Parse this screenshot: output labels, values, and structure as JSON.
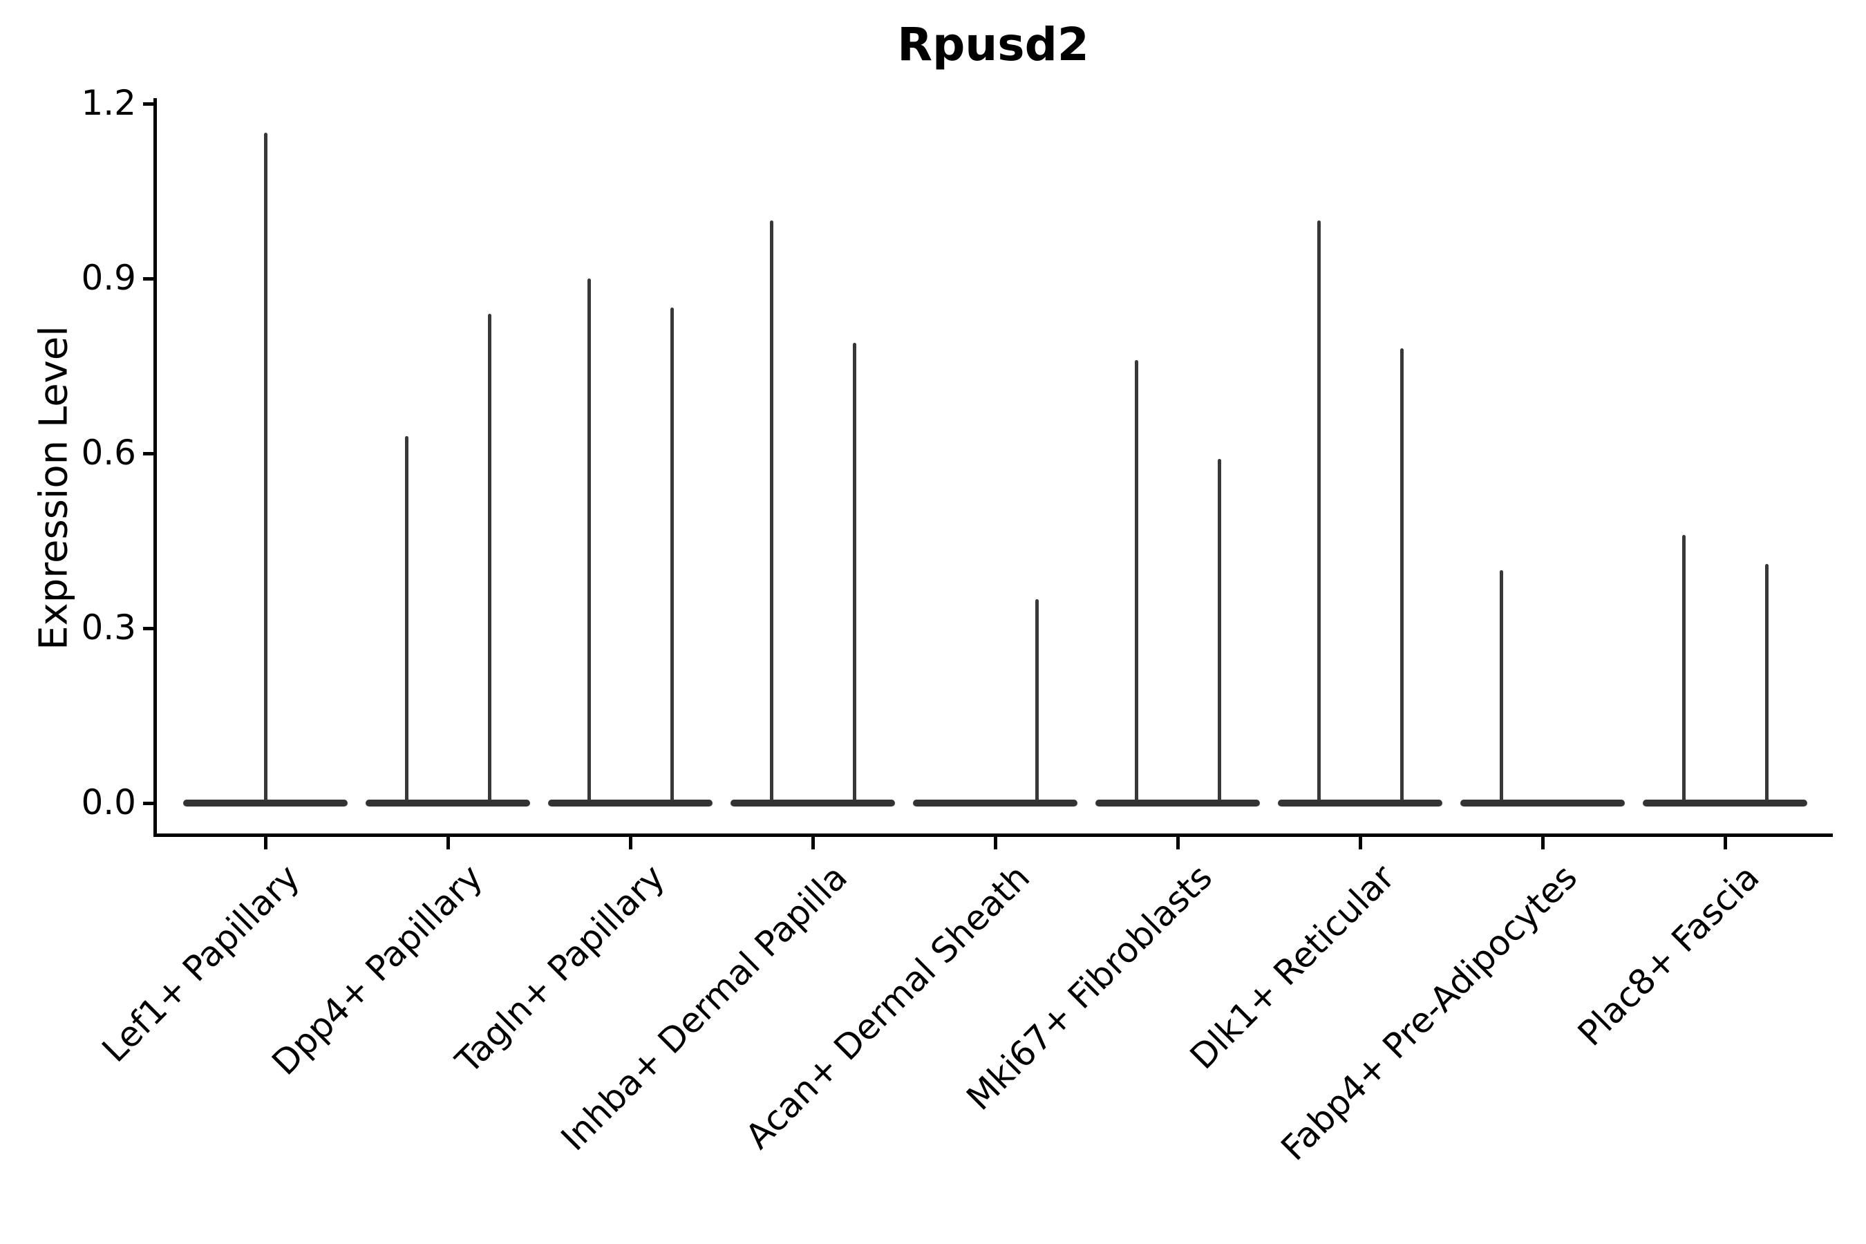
{
  "chart_data": {
    "type": "violin",
    "title": "Rpusd2",
    "ylabel": "Expression Level",
    "xlabel": "",
    "ylim": [
      0,
      1.2
    ],
    "yticks": [
      0.0,
      0.3,
      0.6,
      0.9,
      1.2
    ],
    "ytick_labels": [
      "0.0",
      "0.3",
      "0.6",
      "0.9",
      "1.2"
    ],
    "grid": "off",
    "legend": "none",
    "categories": [
      "Lef1+ Papillary",
      "Dpp4+ Papillary",
      "Tagln+ Papillary",
      "Inhba+ Dermal Papilla",
      "Acan+ Dermal Sheath",
      "Mki67+ Fibroblasts",
      "Dlk1+ Reticular",
      "Fabp4+ Pre-Adipocytes",
      "Plac8+ Fascia"
    ],
    "distribution_note": "Needle-shaped violins: density mass concentrated at expression 0 (wide flat base on the baseline) with a thin vertical spike rising to the maximum expression value; some categories contain two side-by-side violins, each with its own spike.",
    "violins": [
      {
        "category": "Lef1+ Papillary",
        "groups": [
          {
            "position": "center",
            "max_expression": 1.15
          }
        ]
      },
      {
        "category": "Dpp4+ Papillary",
        "groups": [
          {
            "position": "left",
            "max_expression": 0.63
          },
          {
            "position": "right",
            "max_expression": 0.84
          }
        ]
      },
      {
        "category": "Tagln+ Papillary",
        "groups": [
          {
            "position": "left",
            "max_expression": 0.9
          },
          {
            "position": "right",
            "max_expression": 0.85
          }
        ]
      },
      {
        "category": "Inhba+ Dermal Papilla",
        "groups": [
          {
            "position": "left",
            "max_expression": 1.0
          },
          {
            "position": "right",
            "max_expression": 0.79
          }
        ]
      },
      {
        "category": "Acan+ Dermal Sheath",
        "groups": [
          {
            "position": "right",
            "max_expression": 0.35
          }
        ]
      },
      {
        "category": "Mki67+ Fibroblasts",
        "groups": [
          {
            "position": "left",
            "max_expression": 0.76
          },
          {
            "position": "right",
            "max_expression": 0.59
          }
        ]
      },
      {
        "category": "Dlk1+ Reticular",
        "groups": [
          {
            "position": "left",
            "max_expression": 1.0
          },
          {
            "position": "right",
            "max_expression": 0.78
          }
        ]
      },
      {
        "category": "Fabp4+ Pre-Adipocytes",
        "groups": [
          {
            "position": "left",
            "max_expression": 0.4
          }
        ]
      },
      {
        "category": "Plac8+ Fascia",
        "groups": [
          {
            "position": "left",
            "max_expression": 0.46
          },
          {
            "position": "right",
            "max_expression": 0.41
          }
        ]
      }
    ],
    "colors": {
      "violin": "#333333",
      "axis": "#000000",
      "text": "#000000",
      "background": "#ffffff"
    }
  }
}
